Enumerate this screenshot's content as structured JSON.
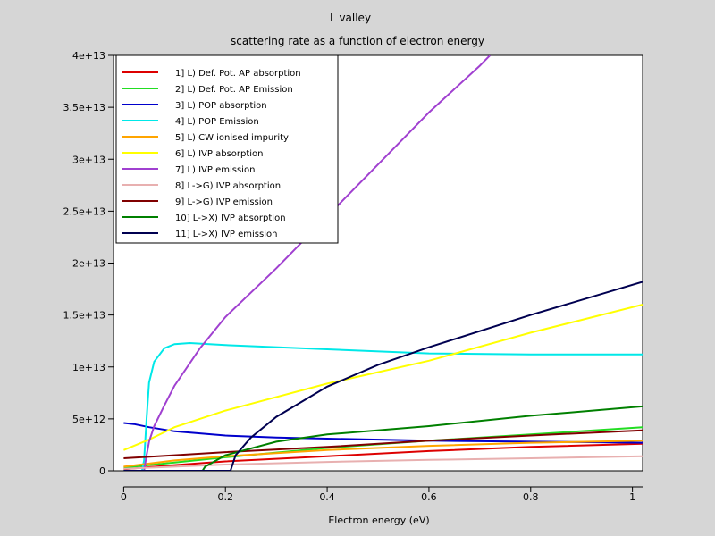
{
  "chart_data": {
    "type": "line",
    "title": "L valley",
    "subtitle": "scattering rate as a function of electron energy",
    "xlabel": "Electron energy (eV)",
    "ylabel": "",
    "xlim": [
      -0.02,
      1.02
    ],
    "ylim": [
      0,
      40000000000000.0
    ],
    "x_ticks": [
      0,
      0.2,
      0.4,
      0.6,
      0.8,
      1
    ],
    "x_tick_labels": [
      "0",
      "0.2",
      "0.4",
      "0.6",
      "0.8",
      "1"
    ],
    "y_ticks": [
      0,
      5000000000000.0,
      10000000000000.0,
      15000000000000.0,
      20000000000000.0,
      25000000000000.0,
      30000000000000.0,
      35000000000000.0,
      40000000000000.0
    ],
    "y_tick_labels": [
      "0",
      "5e+12",
      "1e+13",
      "1.5e+13",
      "2e+13",
      "2.5e+13",
      "3e+13",
      "3.5e+13",
      "4e+13"
    ],
    "grid": false,
    "legend_position": "top-left",
    "series": [
      {
        "name": "1] L) Def. Pot. AP absorption",
        "color": "#dd0000",
        "points": [
          [
            0,
            150000000000.0
          ],
          [
            0.1,
            550000000000.0
          ],
          [
            0.2,
            900000000000.0
          ],
          [
            0.4,
            1400000000000.0
          ],
          [
            0.6,
            1900000000000.0
          ],
          [
            0.8,
            2300000000000.0
          ],
          [
            1.02,
            2600000000000.0
          ]
        ]
      },
      {
        "name": "2] L) Def. Pot. AP Emission",
        "color": "#22dd22",
        "points": [
          [
            0,
            300000000000.0
          ],
          [
            0.1,
            800000000000.0
          ],
          [
            0.2,
            1300000000000.0
          ],
          [
            0.4,
            2200000000000.0
          ],
          [
            0.6,
            2900000000000.0
          ],
          [
            0.8,
            3500000000000.0
          ],
          [
            1.02,
            4200000000000.0
          ]
        ]
      },
      {
        "name": "3] L) POP absorption",
        "color": "#0000cc",
        "points": [
          [
            0,
            4600000000000.0
          ],
          [
            0.02,
            4500000000000.0
          ],
          [
            0.05,
            4200000000000.0
          ],
          [
            0.1,
            3800000000000.0
          ],
          [
            0.2,
            3400000000000.0
          ],
          [
            0.3,
            3200000000000.0
          ],
          [
            0.4,
            3100000000000.0
          ],
          [
            0.6,
            2900000000000.0
          ],
          [
            0.8,
            2800000000000.0
          ],
          [
            1.02,
            2700000000000.0
          ]
        ]
      },
      {
        "name": "4] L) POP Emission",
        "color": "#00e8e8",
        "points": [
          [
            0.036,
            0
          ],
          [
            0.04,
            1000000000000.0
          ],
          [
            0.045,
            5000000000000.0
          ],
          [
            0.05,
            8500000000000.0
          ],
          [
            0.06,
            10500000000000.0
          ],
          [
            0.08,
            11800000000000.0
          ],
          [
            0.1,
            12200000000000.0
          ],
          [
            0.13,
            12300000000000.0
          ],
          [
            0.2,
            12100000000000.0
          ],
          [
            0.4,
            11700000000000.0
          ],
          [
            0.6,
            11300000000000.0
          ],
          [
            0.8,
            11200000000000.0
          ],
          [
            1.02,
            11200000000000.0
          ]
        ]
      },
      {
        "name": "5] L) CW ionised impurity",
        "color": "#ffa500",
        "points": [
          [
            0,
            400000000000.0
          ],
          [
            0.1,
            1000000000000.0
          ],
          [
            0.2,
            1400000000000.0
          ],
          [
            0.4,
            2000000000000.0
          ],
          [
            0.6,
            2400000000000.0
          ],
          [
            0.8,
            2700000000000.0
          ],
          [
            1.02,
            2900000000000.0
          ]
        ]
      },
      {
        "name": "6] L) IVP absorption",
        "color": "#ffff00",
        "points": [
          [
            0,
            2000000000000.0
          ],
          [
            0.05,
            3000000000000.0
          ],
          [
            0.1,
            4200000000000.0
          ],
          [
            0.2,
            5800000000000.0
          ],
          [
            0.4,
            8400000000000.0
          ],
          [
            0.6,
            10600000000000.0
          ],
          [
            0.8,
            13300000000000.0
          ],
          [
            1.02,
            16000000000000.0
          ]
        ]
      },
      {
        "name": "7] L) IVP emission",
        "color": "#a040d0",
        "points": [
          [
            0.04,
            0
          ],
          [
            0.045,
            1500000000000.0
          ],
          [
            0.05,
            2800000000000.0
          ],
          [
            0.06,
            4300000000000.0
          ],
          [
            0.08,
            6300000000000.0
          ],
          [
            0.1,
            8200000000000.0
          ],
          [
            0.15,
            11800000000000.0
          ],
          [
            0.2,
            14800000000000.0
          ],
          [
            0.3,
            19500000000000.0
          ],
          [
            0.4,
            24500000000000.0
          ],
          [
            0.5,
            29500000000000.0
          ],
          [
            0.6,
            34500000000000.0
          ],
          [
            0.7,
            39000000000000.0
          ],
          [
            0.71,
            39500000000000.0
          ],
          [
            0.72,
            40000000000000.0
          ]
        ]
      },
      {
        "name": "8] L->G) IVP absorption",
        "color": "#e8b0b0",
        "points": [
          [
            0,
            200000000000.0
          ],
          [
            0.2,
            600000000000.0
          ],
          [
            0.4,
            850000000000.0
          ],
          [
            0.6,
            1050000000000.0
          ],
          [
            0.8,
            1200000000000.0
          ],
          [
            1.02,
            1400000000000.0
          ]
        ]
      },
      {
        "name": "9] L->G) IVP emission",
        "color": "#800000",
        "points": [
          [
            0,
            1200000000000.0
          ],
          [
            0.1,
            1500000000000.0
          ],
          [
            0.2,
            1800000000000.0
          ],
          [
            0.4,
            2300000000000.0
          ],
          [
            0.6,
            2900000000000.0
          ],
          [
            0.8,
            3400000000000.0
          ],
          [
            1.02,
            3900000000000.0
          ]
        ]
      },
      {
        "name": "10] L->X) IVP absorption",
        "color": "#008000",
        "points": [
          [
            0,
            0
          ],
          [
            0.155,
            0
          ],
          [
            0.16,
            400000000000.0
          ],
          [
            0.2,
            1500000000000.0
          ],
          [
            0.3,
            2800000000000.0
          ],
          [
            0.4,
            3500000000000.0
          ],
          [
            0.6,
            4300000000000.0
          ],
          [
            0.8,
            5300000000000.0
          ],
          [
            1.02,
            6200000000000.0
          ]
        ]
      },
      {
        "name": "11] L->X) IVP emission",
        "color": "#000050",
        "points": [
          [
            0,
            0
          ],
          [
            0.21,
            0
          ],
          [
            0.22,
            1500000000000.0
          ],
          [
            0.25,
            3200000000000.0
          ],
          [
            0.3,
            5200000000000.0
          ],
          [
            0.4,
            8100000000000.0
          ],
          [
            0.5,
            10200000000000.0
          ],
          [
            0.6,
            11900000000000.0
          ],
          [
            0.8,
            15000000000000.0
          ],
          [
            1.02,
            18200000000000.0
          ]
        ]
      }
    ]
  }
}
